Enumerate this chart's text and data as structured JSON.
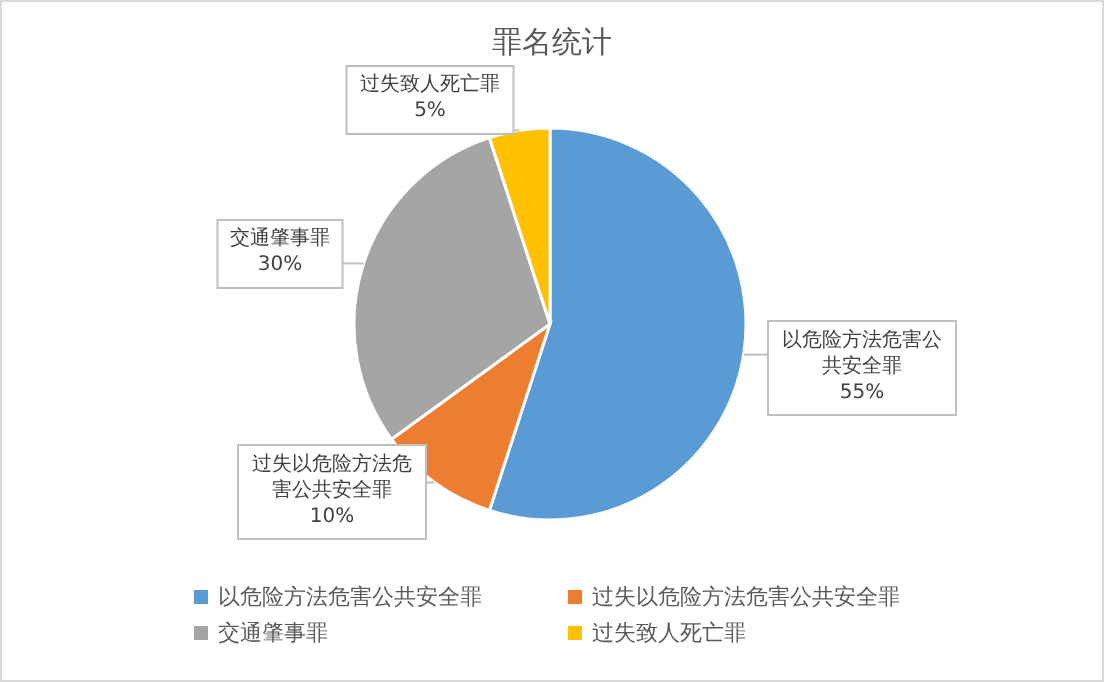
{
  "chart_data": {
    "type": "pie",
    "title": "罪名统计",
    "categories": [
      "以危险方法危害公共安全罪",
      "过失以危险方法危害公共安全罪",
      "交通肇事罪",
      "过失致人死亡罪"
    ],
    "values": [
      55,
      10,
      30,
      5
    ],
    "colors": [
      "#5b9bd5",
      "#ed7d31",
      "#a5a5a5",
      "#ffc000"
    ],
    "value_labels": [
      "55%",
      "10%",
      "30%",
      "5%"
    ],
    "legend": "bottom"
  }
}
